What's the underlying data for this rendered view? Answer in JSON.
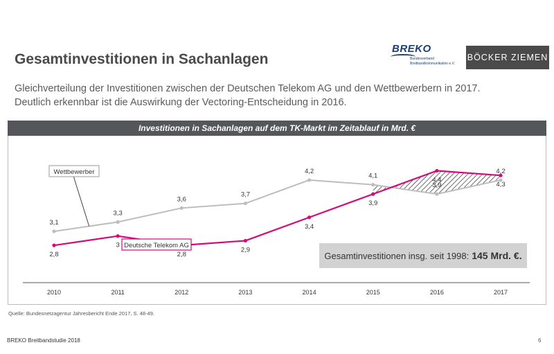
{
  "header": {
    "title": "Gesamtinvestitionen in Sachanlagen",
    "subtitle_line1": "Gleichverteilung der Investitionen zwischen der Deutschen Telekom AG und den Wettbewerbern in 2017.",
    "subtitle_line2": "Deutlich erkennbar ist die Auswirkung der Vectoring-Entscheidung in 2016."
  },
  "logos": {
    "breko_name": "BREKO",
    "breko_sub1": "Bundesverband",
    "breko_sub2": "Breitbandkommunikation e.V.",
    "boecker": "BÖCKER ZIEMEN"
  },
  "chart_data": {
    "type": "line",
    "title": "Investitionen in Sachanlagen auf dem TK-Markt im Zeitablauf in Mrd. €",
    "categories": [
      "2010",
      "2011",
      "2012",
      "2013",
      "2014",
      "2015",
      "2016",
      "2017"
    ],
    "series": [
      {
        "name": "Wettbewerber",
        "color": "#bdbdbd",
        "values": [
          3.1,
          3.3,
          3.6,
          3.7,
          4.2,
          4.1,
          3.9,
          4.2
        ],
        "labels": [
          "3,1",
          "3,3",
          "3,6",
          "3,7",
          "4,2",
          "4,1",
          "3,9",
          "4,2"
        ]
      },
      {
        "name": "Deutsche Telekom AG",
        "color": "#d6087a",
        "values": [
          2.8,
          3.0,
          2.8,
          2.9,
          3.4,
          3.9,
          4.4,
          4.3
        ],
        "labels": [
          "2,8",
          "3",
          "2,8",
          "2,9",
          "3,4",
          "3,9",
          "4,4",
          "4,3"
        ]
      }
    ],
    "ylim": [
      2.0,
      4.6
    ],
    "xlabel": "",
    "ylabel": "",
    "grid": false,
    "annotation": "Gesamtinvestitionen insg. seit 1998: ",
    "annotation_value": "145 Mrd. €."
  },
  "footer": {
    "source": "Quelle: Bundesnetzagentur Jahresbericht Ende 2017, S. 48-49.",
    "study": "BREKO Breitbandstudie 2018",
    "page": "6"
  }
}
